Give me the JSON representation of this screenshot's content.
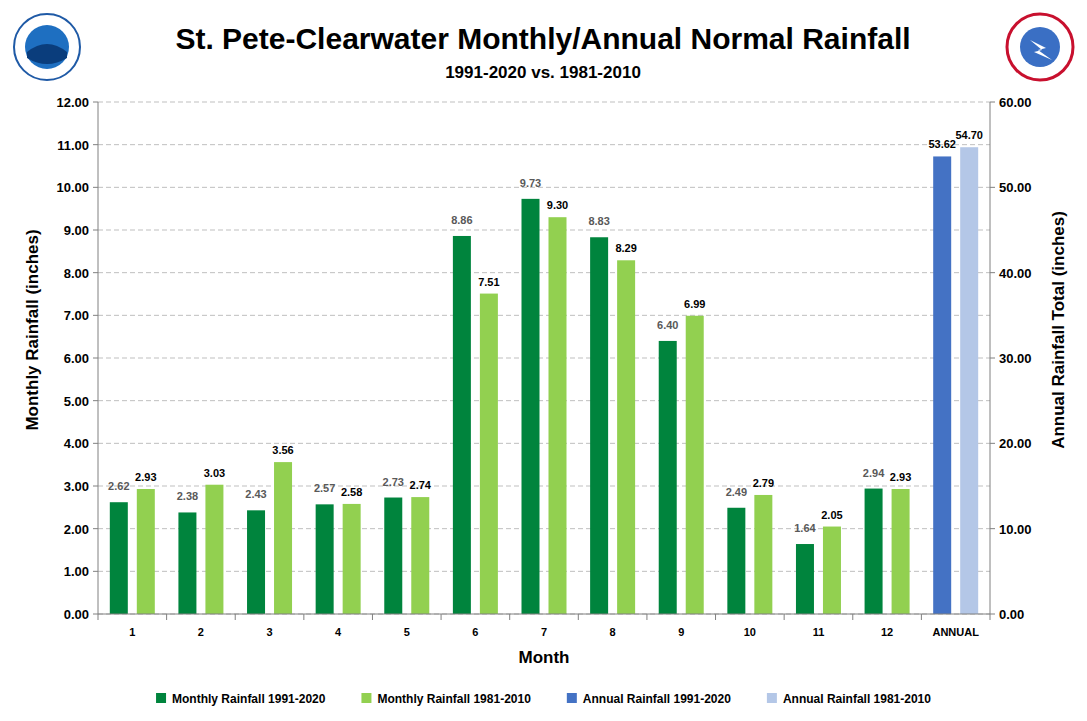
{
  "chart_data": {
    "type": "bar",
    "title": "St. Pete-Clearwater Monthly/Annual Normal Rainfall",
    "subtitle": "1991-2020 vs. 1981-2010",
    "x_label": "Month",
    "y_label": "Monthly Rainfall (inches)",
    "y2_label": "Annual Rainfall Total (inches)",
    "categories": [
      "1",
      "2",
      "3",
      "4",
      "5",
      "6",
      "7",
      "8",
      "9",
      "10",
      "11",
      "12",
      "ANNUAL"
    ],
    "series": [
      {
        "name": "Monthly Rainfall 1991-2020",
        "color": "#00843d",
        "values": [
          2.62,
          2.38,
          2.43,
          2.57,
          2.73,
          8.86,
          9.73,
          8.83,
          6.4,
          2.49,
          1.64,
          2.94,
          null
        ],
        "value_labels": [
          "2.62",
          "2.38",
          "2.43",
          "2.57",
          "2.73",
          "8.86",
          "9.73",
          "8.83",
          "6.40",
          "2.49",
          "1.64",
          "2.94",
          null
        ]
      },
      {
        "name": "Monthly Rainfall 1981-2010",
        "color": "#92d050",
        "values": [
          2.93,
          3.03,
          3.56,
          2.58,
          2.74,
          7.51,
          9.3,
          8.29,
          6.99,
          2.79,
          2.05,
          2.93,
          null
        ],
        "value_labels": [
          "2.93",
          "3.03",
          "3.56",
          "2.58",
          "2.74",
          "7.51",
          "9.30",
          "8.29",
          "6.99",
          "2.79",
          "2.05",
          "2.93",
          null
        ]
      },
      {
        "name": "Annual Rainfall 1991-2020",
        "color": "#4472c4",
        "axis": "y2",
        "values": [
          null,
          null,
          null,
          null,
          null,
          null,
          null,
          null,
          null,
          null,
          null,
          null,
          53.62
        ],
        "value_labels": [
          null,
          null,
          null,
          null,
          null,
          null,
          null,
          null,
          null,
          null,
          null,
          null,
          "53.62"
        ]
      },
      {
        "name": "Annual Rainfall 1981-2010",
        "color": "#b4c7e7",
        "axis": "y2",
        "values": [
          null,
          null,
          null,
          null,
          null,
          null,
          null,
          null,
          null,
          null,
          null,
          null,
          54.7
        ],
        "value_labels": [
          null,
          null,
          null,
          null,
          null,
          null,
          null,
          null,
          null,
          null,
          null,
          null,
          "54.70"
        ]
      }
    ],
    "ylim": [
      0,
      12
    ],
    "yticks": [
      {
        "value": 0,
        "label": "0.00"
      },
      {
        "value": 1,
        "label": "1.00"
      },
      {
        "value": 2,
        "label": "2.00"
      },
      {
        "value": 3,
        "label": "3.00"
      },
      {
        "value": 4,
        "label": "4.00"
      },
      {
        "value": 5,
        "label": "5.00"
      },
      {
        "value": 6,
        "label": "6.00"
      },
      {
        "value": 7,
        "label": "7.00"
      },
      {
        "value": 8,
        "label": "8.00"
      },
      {
        "value": 9,
        "label": "9.00"
      },
      {
        "value": 10,
        "label": "10.00"
      },
      {
        "value": 11,
        "label": "11.00"
      },
      {
        "value": 12,
        "label": "12.00"
      }
    ],
    "y2lim": [
      0,
      60
    ],
    "y2ticks": [
      {
        "value": 0,
        "label": "0.00"
      },
      {
        "value": 10,
        "label": "10.00"
      },
      {
        "value": 20,
        "label": "20.00"
      },
      {
        "value": 30,
        "label": "30.00"
      },
      {
        "value": 40,
        "label": "40.00"
      },
      {
        "value": 50,
        "label": "50.00"
      },
      {
        "value": 60,
        "label": "60.00"
      }
    ],
    "grid": true,
    "data_labels": true,
    "legend": "bottom"
  }
}
